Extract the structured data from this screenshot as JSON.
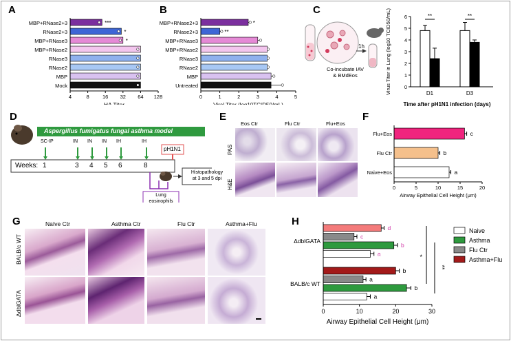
{
  "panels": {
    "A": "A",
    "B": "B",
    "C": "C",
    "D": "D",
    "E": "E",
    "F": "F",
    "G": "G",
    "H": "H"
  },
  "colors": {
    "purple": "#7b2f9e",
    "blue": "#3e66d6",
    "pink": "#e58ad6",
    "lightpink": "#f3c6ee",
    "lightblue": "#8fb1ee",
    "skyblue": "#a8c8f4",
    "lavender": "#d9c2f0",
    "black": "#111111",
    "green": "#2e9a3e",
    "grey": "#8a8a8a",
    "darkred": "#a31a1a",
    "salmon": "#f47b7b",
    "magenta": "#f0247e",
    "peach": "#f5c08c",
    "purpletext": "#a238c9",
    "magentatext": "#cf35b2"
  },
  "chart_data": [
    {
      "id": "A",
      "type": "bar",
      "orientation": "horizontal",
      "categories": [
        "MBP+RNase2+3",
        "RNase2+3",
        "MBP+RNase3",
        "MBP+RNase2",
        "RNase3",
        "RNase2",
        "MBP",
        "Mock"
      ],
      "values": [
        14,
        30,
        32,
        64,
        64,
        64,
        64,
        64
      ],
      "significance": [
        "***",
        "*",
        "*",
        "",
        "",
        "",
        "",
        ""
      ],
      "xlabel": "HA Titer",
      "xscale": "log2",
      "ticks": [
        "4",
        "8",
        "16",
        "32",
        "64",
        "128"
      ],
      "tick_values": [
        4,
        8,
        16,
        32,
        64,
        128
      ]
    },
    {
      "id": "B",
      "type": "bar",
      "orientation": "horizontal",
      "categories": [
        "MBP+RNase2+3",
        "RNase2+3",
        "MBP+RNase3",
        "MBP+RNase2",
        "RNase3",
        "RNase2",
        "MBP",
        "Untreated"
      ],
      "values": [
        2.5,
        1.0,
        3.0,
        3.5,
        3.5,
        3.5,
        3.7,
        3.7
      ],
      "errors": [
        0.1,
        0.1,
        0.15,
        0.05,
        0.05,
        0.05,
        0.15,
        0.6
      ],
      "significance": [
        "*",
        "**",
        "",
        "",
        "",
        "",
        "",
        ""
      ],
      "xlabel": "Viral Titer (log10TCID50/mL)",
      "ticks": [
        "0",
        "1",
        "2",
        "3",
        "4",
        "5"
      ],
      "xlim": [
        0,
        5
      ]
    },
    {
      "id": "C",
      "type": "bar",
      "categories": [
        "D1",
        "D3"
      ],
      "series": [
        {
          "values": [
            4.8,
            4.8
          ],
          "errors": [
            0.45,
            0.7
          ]
        },
        {
          "values": [
            2.4,
            3.8
          ],
          "errors": [
            0.9,
            0.2
          ]
        }
      ],
      "significance": [
        "**",
        "**"
      ],
      "ylabel": "Virus Titer in Lung (log10 TCID50/mL)",
      "xlabel": "Time after pH1N1 infection (days)",
      "ticks": [
        "0",
        "1",
        "2",
        "3",
        "4",
        "5",
        "6"
      ],
      "ylim": [
        0,
        6
      ]
    },
    {
      "id": "F",
      "type": "bar",
      "orientation": "horizontal",
      "categories": [
        "Flu+Eos",
        "Flu Ctr",
        "Naive+Eos"
      ],
      "values": [
        16,
        10,
        12.5
      ],
      "errors": [
        0.5,
        0.4,
        0.4
      ],
      "letters": [
        "c",
        "b",
        "a"
      ],
      "xlabel": "Airway Epithelial Cell Height (μm)",
      "ticks": [
        "0",
        "5",
        "10",
        "15",
        "20"
      ],
      "xlim": [
        0,
        20
      ]
    },
    {
      "id": "H",
      "type": "bar",
      "orientation": "horizontal",
      "groups": [
        "ΔdblGATA",
        "BALB/c WT"
      ],
      "series": [
        {
          "name": "Naive",
          "values": [
            13,
            12
          ]
        },
        {
          "name": "Asthma",
          "values": [
            19.5,
            23
          ]
        },
        {
          "name": "Flu Ctr",
          "values": [
            8.5,
            11
          ]
        },
        {
          "name": "Asthma+Flu",
          "values": [
            16,
            20
          ]
        }
      ],
      "errors": [
        [
          1,
          1
        ],
        [
          1,
          1.2
        ],
        [
          0.8,
          0.8
        ],
        [
          0.8,
          1
        ]
      ],
      "letters": [
        [
          "a",
          "a"
        ],
        [
          "b",
          "b"
        ],
        [
          "c",
          "a"
        ],
        [
          "d",
          "b"
        ]
      ],
      "xlabel": "Airway Epithelial Cell Height (μm)",
      "ticks": [
        "0",
        "10",
        "20",
        "30"
      ],
      "xlim": [
        0,
        30
      ],
      "stars": [
        "*",
        "**"
      ]
    }
  ],
  "C": {
    "caption_line1": "Co-incubate IAV",
    "caption_line2": "& BMdEos",
    "time": "1h"
  },
  "D": {
    "model": "Aspergillus fumigatus fungal asthma model",
    "weeks_label": "Weeks:",
    "weeks": [
      "1",
      "3",
      "4",
      "5",
      "6",
      "8"
    ],
    "routes": [
      "SC-IP",
      "IN",
      "IN",
      "IN",
      "IH",
      "IH"
    ],
    "infection": "pH1N1",
    "histo_line1": "Histopathology",
    "histo_line2": "at 3 and 5 dpi",
    "lung_line1": "Lung",
    "lung_line2": "eosinophils"
  },
  "E": {
    "cols": [
      "Eos Ctr",
      "Flu Ctr",
      "Flu+Eos"
    ],
    "rows": [
      "PAS",
      "H&E"
    ]
  },
  "G": {
    "cols": [
      "Naïve Ctr",
      "Asthma Ctr",
      "Flu Ctr",
      "Asthma+Flu"
    ],
    "rows": [
      "BALB/c WT",
      "ΔdblGATA"
    ]
  }
}
